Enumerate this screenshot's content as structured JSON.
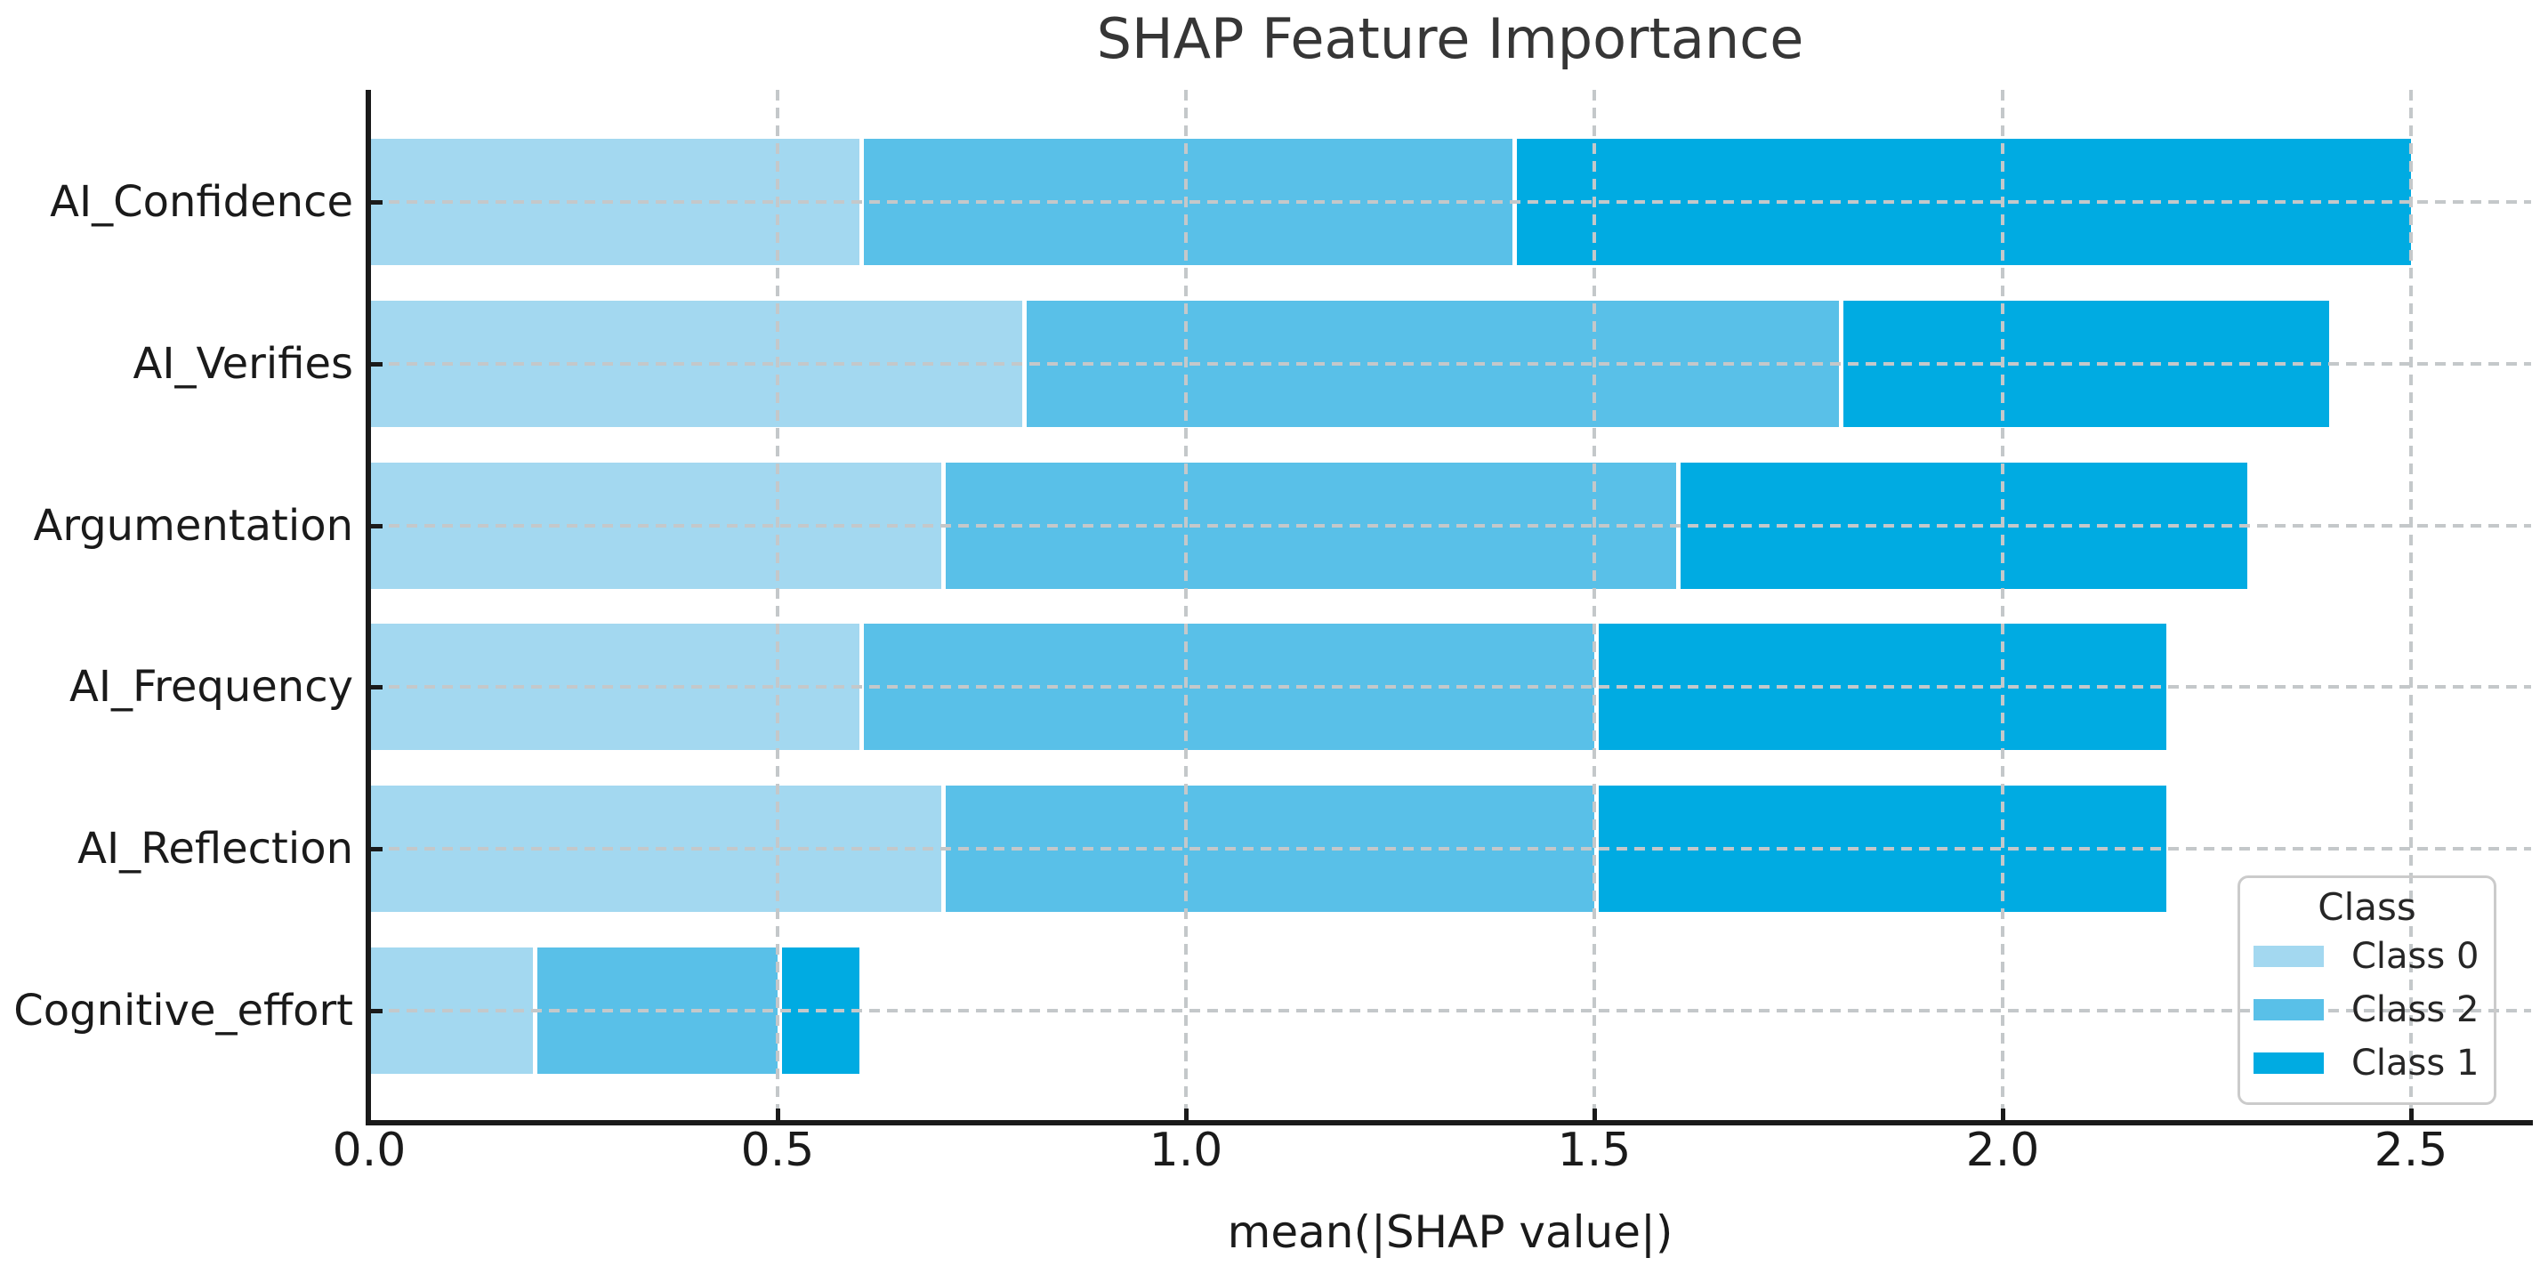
{
  "chart_data": {
    "type": "bar",
    "orientation": "horizontal",
    "stacked": true,
    "title": "SHAP Feature Importance",
    "xlabel": "mean(|SHAP value|)",
    "ylabel": "",
    "categories": [
      "AI_Confidence",
      "AI_Verifies",
      "Argumentation",
      "AI_Frequency",
      "AI_Reflection",
      "Cognitive_effort"
    ],
    "series": [
      {
        "name": "Class 0",
        "color": "#a3d8f0",
        "values": [
          0.6,
          0.8,
          0.7,
          0.6,
          0.7,
          0.2
        ]
      },
      {
        "name": "Class 2",
        "color": "#59c0e8",
        "values": [
          0.8,
          1.0,
          0.9,
          0.9,
          0.8,
          0.3
        ]
      },
      {
        "name": "Class 1",
        "color": "#00abe2",
        "values": [
          1.1,
          0.6,
          0.7,
          0.7,
          0.7,
          0.1
        ]
      }
    ],
    "totals": [
      2.5,
      2.4,
      2.3,
      2.2,
      2.2,
      0.6
    ],
    "x_ticks": [
      0.0,
      0.5,
      1.0,
      1.5,
      2.0,
      2.5
    ],
    "x_tick_labels": [
      "0.0",
      "0.5",
      "1.0",
      "1.5",
      "2.0",
      "2.5"
    ],
    "xlim": [
      0,
      2.65
    ],
    "grid": true,
    "grid_style": "dashed",
    "legend": {
      "title": "Class",
      "position": "lower right",
      "entries": [
        "Class 0",
        "Class 2",
        "Class 1"
      ]
    },
    "colors": {
      "background": "#ffffff",
      "grid": "#c4c8ca",
      "spine": "#1a1a1a",
      "title_text": "#363636",
      "label_text": "#1a1a1a",
      "legend_border": "#cbcbcb"
    }
  }
}
